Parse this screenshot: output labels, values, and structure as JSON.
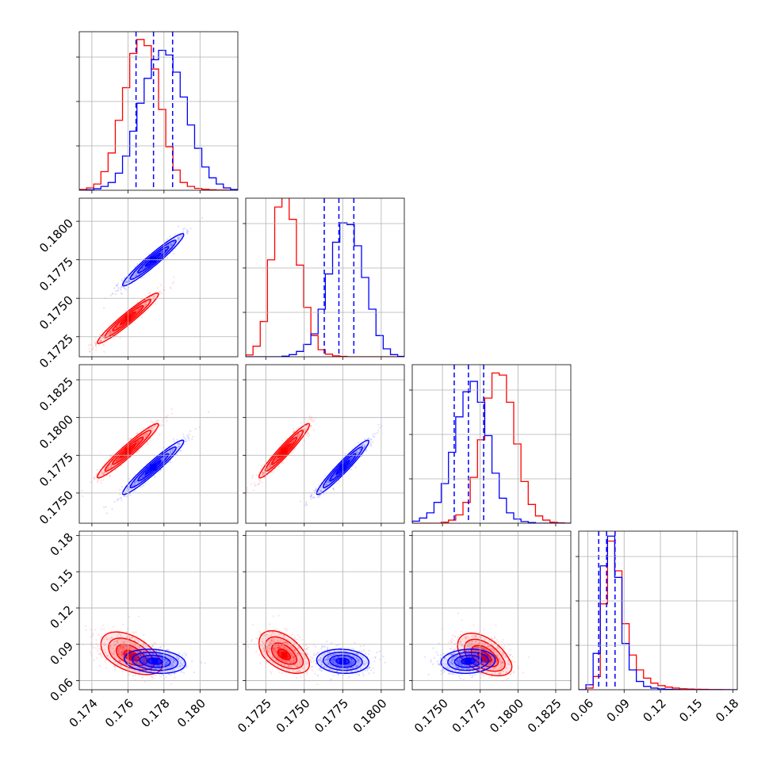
{
  "colors": {
    "red": "#ff0000",
    "blue": "#0000ff",
    "grid": "#b0b0b0",
    "frame": "#000000"
  },
  "chart_data": {
    "type": "corner",
    "grid": true,
    "histograms": [
      {
        "param_index": 0,
        "x": {
          "range": [
            0.1733,
            0.1821
          ],
          "ticks": [
            0.174,
            0.176,
            0.178,
            0.18
          ],
          "tick_labels": [
            "0.174",
            "0.176",
            "0.178",
            "0.180"
          ]
        },
        "series": [
          {
            "color": "red",
            "bin_edges": [
              0.1733,
              0.1737,
              0.1741,
              0.1745,
              0.1749,
              0.1753,
              0.1757,
              0.1761,
              0.1765,
              0.1769,
              0.1773,
              0.1777,
              0.1781,
              0.1785,
              0.1789,
              0.1793,
              0.1797,
              0.1801,
              0.1805,
              0.1809,
              0.1813,
              0.1817,
              0.1821
            ],
            "counts": [
              0.5,
              1.5,
              4,
              12,
              24,
              45,
              66,
              88,
              97,
              93,
              78,
              52,
              28,
              13,
              5,
              2.5,
              1.2,
              0.6,
              0.3,
              0.1,
              0.1,
              0
            ]
          },
          {
            "color": "blue",
            "bin_edges": [
              0.1733,
              0.1737,
              0.1741,
              0.1745,
              0.1749,
              0.1753,
              0.1757,
              0.1761,
              0.1765,
              0.1769,
              0.1773,
              0.1777,
              0.1781,
              0.1785,
              0.1789,
              0.1793,
              0.1797,
              0.1801,
              0.1805,
              0.1809,
              0.1813,
              0.1817,
              0.1821
            ],
            "counts": [
              0,
              0.3,
              1,
              2.5,
              5,
              11,
              22,
              38,
              56,
              72,
              84,
              90,
              87,
              76,
              60,
              42,
              27,
              15,
              8,
              4,
              1.5,
              0.5
            ]
          }
        ],
        "quantiles": [
          0.17645,
          0.17742,
          0.17848
        ],
        "ymax": 102
      },
      {
        "param_index": 1,
        "x": {
          "range": [
            0.1712,
            0.1815
          ],
          "ticks": [
            0.1725,
            0.175,
            0.1775,
            0.18
          ],
          "tick_labels": [
            "0.1725",
            "0.1750",
            "0.1775",
            "0.1800"
          ]
        },
        "series": [
          {
            "color": "red",
            "bin_edges": [
              0.1712,
              0.17167,
              0.17214,
              0.17261,
              0.17308,
              0.17355,
              0.17402,
              0.17449,
              0.17496,
              0.17543,
              0.1759,
              0.17637,
              0.17684,
              0.17731,
              0.17778,
              0.17825,
              0.17872,
              0.17919,
              0.17966,
              0.18013,
              0.1806,
              0.18107,
              0.1815
            ],
            "counts": [
              1,
              6,
              20,
              55,
              85,
              93,
              78,
              52,
              28,
              12,
              4,
              1.5,
              0.5,
              0.2,
              0,
              0,
              0,
              0,
              0,
              0,
              0,
              0
            ]
          },
          {
            "color": "blue",
            "bin_edges": [
              0.1712,
              0.17167,
              0.17214,
              0.17261,
              0.17308,
              0.17355,
              0.17402,
              0.17449,
              0.17496,
              0.17543,
              0.1759,
              0.17637,
              0.17684,
              0.17731,
              0.17778,
              0.17825,
              0.17872,
              0.17919,
              0.17966,
              0.18013,
              0.1806,
              0.18107,
              0.1815
            ],
            "counts": [
              0,
              0,
              0,
              0,
              0,
              0.3,
              1.2,
              3,
              7,
              13,
              27,
              47,
              65,
              76,
              75,
              63,
              45,
              27,
              12,
              4.5,
              1.2,
              0.2
            ]
          }
        ],
        "quantiles": [
          0.1763,
          0.17725,
          0.17822
        ],
        "ymax": 90
      },
      {
        "param_index": 2,
        "x": {
          "range": [
            0.173,
            0.1835
          ],
          "ticks": [
            0.175,
            0.1775,
            0.18,
            0.1825
          ],
          "tick_labels": [
            "0.1750",
            "0.1775",
            "0.1800",
            "0.1825"
          ]
        },
        "series": [
          {
            "color": "red",
            "bin_edges": [
              0.173,
              0.17348,
              0.17396,
              0.17444,
              0.17492,
              0.1754,
              0.17588,
              0.17636,
              0.17684,
              0.17732,
              0.1778,
              0.17828,
              0.17876,
              0.17924,
              0.17972,
              0.1802,
              0.18068,
              0.18116,
              0.18164,
              0.18212,
              0.1826,
              0.18308,
              0.1835
            ],
            "counts": [
              0,
              0,
              0,
              0,
              0.5,
              1.5,
              4,
              10,
              22,
              40,
              60,
              72,
              71,
              58,
              38,
              20,
              9,
              3.5,
              1.5,
              0.5,
              0.2,
              0
            ]
          },
          {
            "color": "blue",
            "bin_edges": [
              0.173,
              0.17348,
              0.17396,
              0.17444,
              0.17492,
              0.1754,
              0.17588,
              0.17636,
              0.17684,
              0.17732,
              0.1778,
              0.17828,
              0.17876,
              0.17924,
              0.17972,
              0.1802,
              0.18068,
              0.18116,
              0.18164,
              0.18212,
              0.1826,
              0.18308,
              0.1835
            ],
            "counts": [
              1,
              2.5,
              5,
              10,
              19,
              34,
              51,
              63,
              68,
              58,
              42,
              24,
              12,
              5,
              2,
              0.8,
              0.3,
              0,
              0,
              0,
              0,
              0
            ]
          }
        ],
        "quantiles": [
          0.17578,
          0.17672,
          0.17773
        ],
        "ymax": 76
      },
      {
        "param_index": 3,
        "x": {
          "range": [
            0.0525,
            0.1835
          ],
          "ticks": [
            0.06,
            0.09,
            0.12,
            0.15,
            0.18
          ],
          "tick_labels": [
            "0.06",
            "0.09",
            "0.12",
            "0.15",
            "0.18"
          ]
        },
        "series": [
          {
            "color": "red",
            "bin_edges": [
              0.0525,
              0.05845,
              0.0644,
              0.07035,
              0.0763,
              0.08225,
              0.0882,
              0.09415,
              0.1001,
              0.10605,
              0.112,
              0.11795,
              0.1239,
              0.12985,
              0.1358,
              0.14175,
              0.1477,
              0.15365,
              0.1596,
              0.16555,
              0.1715,
              0.17745,
              0.1835
            ],
            "counts": [
              0,
              1,
              8,
              52,
              90,
              72,
              40,
              21,
              12,
              7,
              4,
              2.5,
              1.6,
              1,
              0.6,
              0.4,
              0.3,
              0.2,
              0.1,
              0.1,
              0.05,
              0
            ]
          },
          {
            "color": "blue",
            "bin_edges": [
              0.0525,
              0.05845,
              0.0644,
              0.07035,
              0.0763,
              0.08225,
              0.0882,
              0.09415,
              0.1001,
              0.10605,
              0.112,
              0.11795,
              0.1239,
              0.12985,
              0.1358,
              0.14175,
              0.1477,
              0.15365,
              0.1596,
              0.16555,
              0.1715,
              0.17745,
              0.1835
            ],
            "counts": [
              0,
              3,
              22,
              75,
              93,
              68,
              28,
              12,
              5,
              2,
              1,
              0.5,
              0.2,
              0.1,
              0,
              0,
              0,
              0,
              0,
              0,
              0,
              0
            ]
          }
        ],
        "quantiles": [
          0.069,
          0.0755,
          0.0825
        ],
        "ymax": 96
      }
    ],
    "pairs": [
      {
        "x_param": 0,
        "y_param": 1,
        "y": {
          "range": [
            0.1712,
            0.1815
          ],
          "ticks": [
            0.1725,
            0.175,
            0.1775,
            0.18
          ],
          "tick_labels": [
            "0.1725",
            "0.1750",
            "0.1775",
            "0.1800"
          ]
        },
        "series": [
          {
            "color": "red",
            "center": [
              0.176,
              0.1737
            ],
            "sx": 0.00085,
            "sy": 0.00082,
            "rho": 0.96
          },
          {
            "color": "blue",
            "center": [
              0.1774,
              0.1775
            ],
            "sx": 0.00085,
            "sy": 0.00085,
            "rho": 0.96
          }
        ]
      },
      {
        "x_param": 0,
        "y_param": 2,
        "y": {
          "range": [
            0.173,
            0.1835
          ],
          "ticks": [
            0.175,
            0.1775,
            0.18,
            0.1825
          ],
          "tick_labels": [
            "0.1750",
            "0.1775",
            "0.1800",
            "0.1825"
          ]
        },
        "series": [
          {
            "color": "red",
            "center": [
              0.176,
              0.1778
            ],
            "sx": 0.00085,
            "sy": 0.0009,
            "rho": 0.96
          },
          {
            "color": "blue",
            "center": [
              0.1774,
              0.1767
            ],
            "sx": 0.00085,
            "sy": 0.0009,
            "rho": 0.96
          }
        ]
      },
      {
        "x_param": 0,
        "y_param": 3,
        "y": {
          "range": [
            0.0525,
            0.1835
          ],
          "ticks": [
            0.06,
            0.09,
            0.12,
            0.15,
            0.18
          ],
          "tick_labels": [
            "0.06",
            "0.09",
            "0.12",
            "0.15",
            "0.18"
          ]
        },
        "series": [
          {
            "color": "red",
            "center": [
              0.1762,
              0.08
            ],
            "sx": 0.00085,
            "sy": 0.0075,
            "rho": -0.5,
            "skew": 1.0
          },
          {
            "color": "blue",
            "center": [
              0.1775,
              0.076
            ],
            "sx": 0.00085,
            "sy": 0.005,
            "rho": -0.2
          }
        ]
      },
      {
        "x_param": 1,
        "y_param": 2,
        "y": {
          "range": [
            0.173,
            0.1835
          ],
          "ticks": [
            0.175,
            0.1775,
            0.18,
            0.1825
          ],
          "tick_labels": [
            "0.1750",
            "0.1775",
            "0.1800",
            "0.1825"
          ]
        },
        "series": [
          {
            "color": "red",
            "center": [
              0.1737,
              0.1778
            ],
            "sx": 0.00082,
            "sy": 0.0009,
            "rho": 0.96
          },
          {
            "color": "blue",
            "center": [
              0.1775,
              0.1767
            ],
            "sx": 0.00085,
            "sy": 0.0009,
            "rho": 0.96
          }
        ]
      },
      {
        "x_param": 1,
        "y_param": 3,
        "y": {
          "range": [
            0.0525,
            0.1835
          ],
          "ticks": [
            0.06,
            0.09,
            0.12,
            0.15,
            0.18
          ],
          "tick_labels": [
            "0.06",
            "0.09",
            "0.12",
            "0.15",
            "0.18"
          ]
        },
        "series": [
          {
            "color": "red",
            "center": [
              0.1737,
              0.081
            ],
            "sx": 0.00082,
            "sy": 0.0075,
            "rho": -0.5,
            "skew": 1.0
          },
          {
            "color": "blue",
            "center": [
              0.1775,
              0.076
            ],
            "sx": 0.00085,
            "sy": 0.005,
            "rho": -0.1
          }
        ]
      },
      {
        "x_param": 2,
        "y_param": 3,
        "y": {
          "range": [
            0.0525,
            0.1835
          ],
          "ticks": [
            0.06,
            0.09,
            0.12,
            0.15,
            0.18
          ],
          "tick_labels": [
            "0.06",
            "0.09",
            "0.12",
            "0.15",
            "0.18"
          ]
        },
        "series": [
          {
            "color": "red",
            "center": [
              0.1778,
              0.079
            ],
            "sx": 0.0009,
            "sy": 0.0075,
            "rho": -0.5,
            "skew": 1.0
          },
          {
            "color": "blue",
            "center": [
              0.1767,
              0.076
            ],
            "sx": 0.0009,
            "sy": 0.005,
            "rho": 0.1
          }
        ]
      }
    ]
  }
}
